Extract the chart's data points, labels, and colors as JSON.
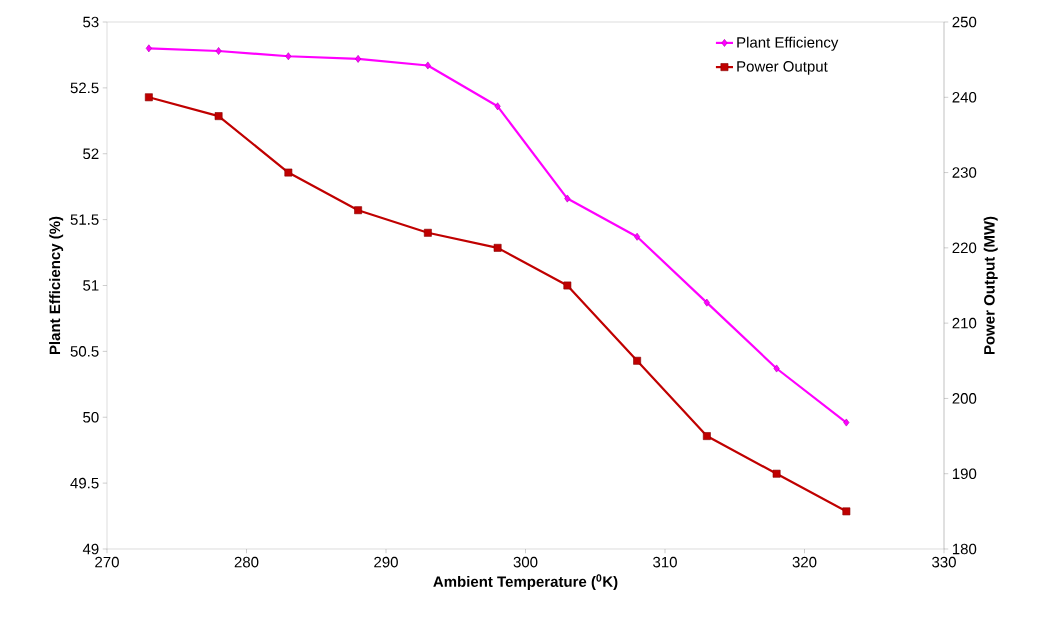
{
  "chart_data": {
    "type": "line",
    "xlabel": "Ambient Temperature ($^{0}$K)",
    "ylabel": "Plant Efficiency (%)",
    "y2label": "Power Output (MW)",
    "x": [
      273,
      278,
      283,
      288,
      293,
      298,
      303,
      308,
      313,
      318,
      323
    ],
    "series": [
      {
        "name": "Plant Efficiency",
        "color": "#ff00ff",
        "marker": "diamond",
        "values": [
          52.8,
          52.78,
          52.74,
          52.72,
          52.67,
          52.36,
          51.66,
          51.37,
          50.87,
          50.37,
          49.96
        ]
      },
      {
        "name": "Power Output",
        "color": "#c00000",
        "marker": "square",
        "axis": "y2",
        "values": [
          240,
          237.5,
          230,
          225,
          222,
          220,
          215,
          205,
          195,
          190,
          185
        ]
      }
    ],
    "xlim": [
      270,
      330
    ],
    "xticks": [
      270,
      280,
      290,
      300,
      310,
      320,
      330
    ],
    "ylim": [
      49,
      53
    ],
    "yticks": [
      49,
      49.5,
      50,
      50.5,
      51,
      51.5,
      52,
      52.5,
      53
    ],
    "y2lim": [
      180,
      250
    ],
    "y2ticks": [
      180,
      190,
      200,
      210,
      220,
      230,
      240,
      250
    ],
    "legend": "top right",
    "grid": false,
    "line_style": "solid"
  }
}
